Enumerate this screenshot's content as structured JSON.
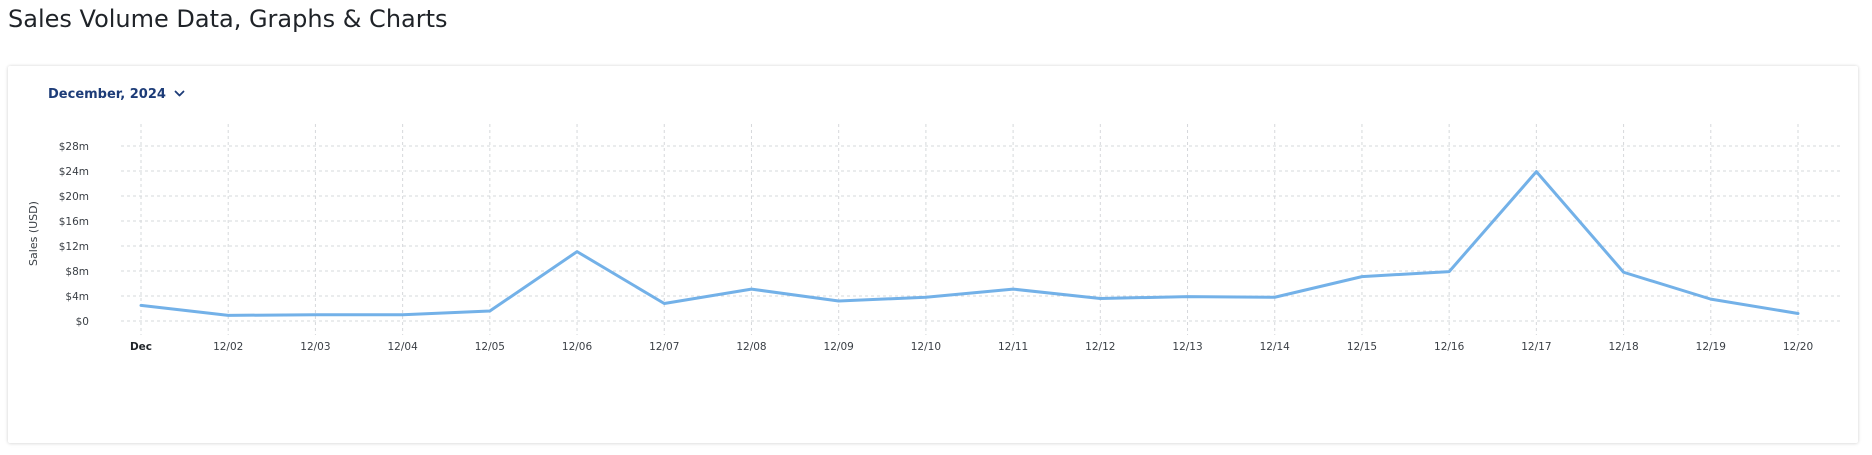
{
  "page": {
    "title": "Sales Volume Data, Graphs & Charts"
  },
  "filter": {
    "period_label": "December, 2024"
  },
  "icons": {
    "period_toggle": "chevron-down-icon"
  },
  "colors": {
    "line": "#73b1e8",
    "accent_text": "#1d3c78"
  },
  "chart_data": {
    "type": "line",
    "ylabel": "Sales (USD)",
    "xlabel": "",
    "ylim": [
      0,
      28
    ],
    "y_unit": "millions USD",
    "y_ticks": [
      0,
      4,
      8,
      12,
      16,
      20,
      24,
      28
    ],
    "y_tick_labels": [
      "$0",
      "$4m",
      "$8m",
      "$12m",
      "$16m",
      "$20m",
      "$24m",
      "$28m"
    ],
    "categories": [
      "Dec",
      "12/02",
      "12/03",
      "12/04",
      "12/05",
      "12/06",
      "12/07",
      "12/08",
      "12/09",
      "12/10",
      "12/11",
      "12/12",
      "12/13",
      "12/14",
      "12/15",
      "12/16",
      "12/17",
      "12/18",
      "12/19",
      "12/20"
    ],
    "bold_categories": [
      "Dec"
    ],
    "series": [
      {
        "values": [
          2.5,
          0.9,
          1.0,
          1.0,
          1.6,
          11.1,
          2.8,
          5.1,
          3.2,
          3.8,
          5.1,
          3.6,
          3.9,
          3.8,
          7.1,
          7.9,
          23.9,
          7.8,
          3.5,
          1.2
        ]
      }
    ],
    "grid": true,
    "legend": "none"
  }
}
